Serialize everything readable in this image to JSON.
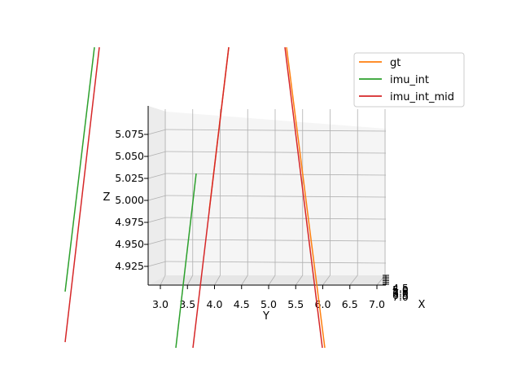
{
  "chart_data": {
    "type": "line",
    "projection": "3d",
    "title": "",
    "xlabel": "X",
    "ylabel": "Y",
    "zlabel": "Z",
    "y_ticks": [
      "3.0",
      "3.5",
      "4.0",
      "4.5",
      "5.0",
      "5.5",
      "6.0",
      "6.5",
      "7.0"
    ],
    "z_ticks": [
      "4.925",
      "4.950",
      "4.975",
      "5.000",
      "5.025",
      "5.050",
      "5.075"
    ],
    "x_ticks": [
      "4.5",
      "5.0",
      "5.5",
      "6.0",
      "6.5",
      "7.0"
    ],
    "ylim": [
      2.75,
      7.15
    ],
    "zlim": [
      4.9,
      5.1
    ],
    "legend_position": "top-right",
    "grid": true,
    "series": [
      {
        "name": "gt",
        "color": "#ff7f0e"
      },
      {
        "name": "imu_int",
        "color": "#2ca02c"
      },
      {
        "name": "imu_int_mid",
        "color": "#d62728"
      }
    ]
  }
}
